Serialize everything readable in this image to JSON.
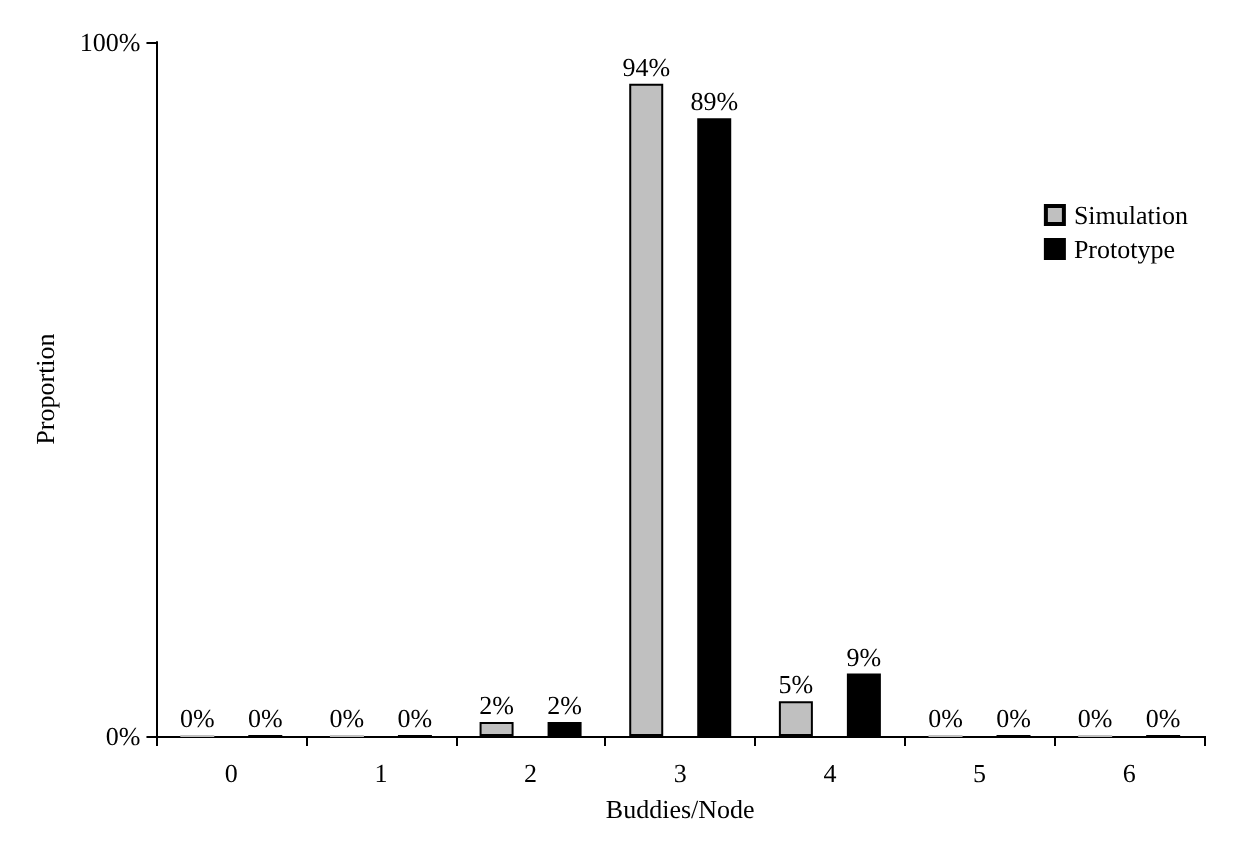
{
  "chart_data": {
    "type": "bar",
    "xlabel": "Buddies/Node",
    "ylabel": "Proportion",
    "categories": [
      "0",
      "1",
      "2",
      "3",
      "4",
      "5",
      "6"
    ],
    "series": [
      {
        "name": "Simulation",
        "color": "#c0c0c0",
        "values": [
          0,
          0,
          2,
          94,
          5,
          0,
          0
        ],
        "value_labels": [
          "0%",
          "0%",
          "2%",
          "94%",
          "5%",
          "0%",
          "0%"
        ]
      },
      {
        "name": "Prototype",
        "color": "#000000",
        "values": [
          0,
          0,
          2,
          89,
          9,
          0,
          0
        ],
        "value_labels": [
          "0%",
          "0%",
          "2%",
          "89%",
          "9%",
          "0%",
          "0%"
        ]
      }
    ],
    "ylim": [
      0,
      100
    ],
    "yticks": [
      {
        "value": 0,
        "label": "0%"
      },
      {
        "value": 100,
        "label": "100%"
      }
    ],
    "grid": false,
    "legend": "right"
  }
}
